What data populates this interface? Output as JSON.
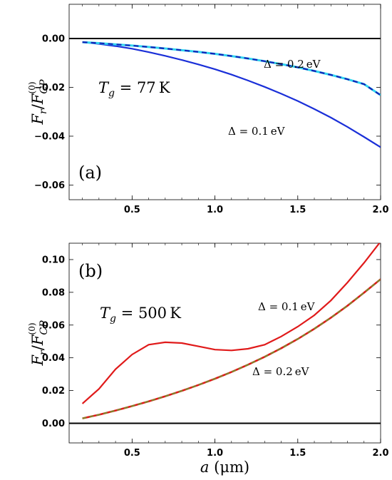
{
  "chart_data": [
    {
      "panel_label": "(a)",
      "type": "line",
      "xlim": [
        0.12,
        2.0
      ],
      "ylim": [
        -0.066,
        0.014
      ],
      "x_ticks": [
        "0.5",
        "1.0",
        "1.5",
        "2.0"
      ],
      "y_ticks": [
        "0.00",
        "-0.02",
        "-0.04",
        "-0.06"
      ],
      "ylabel": "F_r / F_CP^(0)",
      "temperature": {
        "symbol": "T",
        "sub": "g",
        "eq": " = ",
        "value": "77",
        "unit": "K"
      },
      "series": [
        {
          "name": "Δ = 0.1 eV",
          "x": [
            0.2,
            0.3,
            0.4,
            0.5,
            0.6,
            0.7,
            0.8,
            0.9,
            1.0,
            1.1,
            1.2,
            1.3,
            1.4,
            1.5,
            1.6,
            1.7,
            1.8,
            1.9,
            2.0
          ],
          "y": [
            -0.0015,
            -0.0022,
            -0.0031,
            -0.0042,
            -0.0056,
            -0.0071,
            -0.0088,
            -0.0106,
            -0.0126,
            -0.0148,
            -0.0172,
            -0.0198,
            -0.0226,
            -0.0256,
            -0.0289,
            -0.0324,
            -0.0362,
            -0.0403,
            -0.0445
          ]
        },
        {
          "name": "Δ = 0.2 eV",
          "x": [
            0.2,
            0.3,
            0.4,
            0.5,
            0.6,
            0.7,
            0.8,
            0.9,
            1.0,
            1.1,
            1.2,
            1.3,
            1.4,
            1.5,
            1.6,
            1.7,
            1.8,
            1.9,
            2.0
          ],
          "y": [
            -0.0015,
            -0.0019,
            -0.0024,
            -0.0029,
            -0.0035,
            -0.0041,
            -0.0048,
            -0.0055,
            -0.0063,
            -0.0072,
            -0.0082,
            -0.0093,
            -0.0105,
            -0.0118,
            -0.0133,
            -0.0149,
            -0.0167,
            -0.0187,
            -0.0232
          ]
        },
        {
          "name": "",
          "x": [
            0.2,
            0.3,
            0.4,
            0.5,
            0.6,
            0.7,
            0.8,
            0.9,
            1.0,
            1.1,
            1.2,
            1.3,
            1.4,
            1.5,
            1.6,
            1.7,
            1.8,
            1.9,
            2.0
          ],
          "y": [
            -0.0015,
            -0.0019,
            -0.0024,
            -0.0029,
            -0.0035,
            -0.0041,
            -0.0048,
            -0.0055,
            -0.0063,
            -0.0072,
            -0.0082,
            -0.0093,
            -0.0105,
            -0.0118,
            -0.0133,
            -0.0149,
            -0.0167,
            -0.0187,
            -0.0232
          ]
        }
      ]
    },
    {
      "panel_label": "(b)",
      "type": "line",
      "xlim": [
        0.12,
        2.0
      ],
      "ylim": [
        -0.012,
        0.11
      ],
      "x_ticks": [
        "0.5",
        "1.0",
        "1.5",
        "2.0"
      ],
      "y_ticks": [
        "0.10",
        "0.08",
        "0.06",
        "0.04",
        "0.02",
        "0.00"
      ],
      "xlabel": "a (μm)",
      "ylabel": "F_r / F_CP^(0)",
      "temperature": {
        "symbol": "T",
        "sub": "g",
        "eq": " = ",
        "value": "500",
        "unit": "K"
      },
      "series": [
        {
          "name": "Δ = 0.1 eV",
          "x": [
            0.2,
            0.3,
            0.4,
            0.5,
            0.6,
            0.7,
            0.8,
            0.9,
            1.0,
            1.1,
            1.2,
            1.3,
            1.4,
            1.5,
            1.6,
            1.7,
            1.8,
            1.9,
            2.0
          ],
          "y": [
            0.012,
            0.021,
            0.033,
            0.042,
            0.048,
            0.0495,
            0.049,
            0.047,
            0.045,
            0.0445,
            0.0455,
            0.048,
            0.053,
            0.059,
            0.066,
            0.075,
            0.086,
            0.098,
            0.111
          ]
        },
        {
          "name": "Δ = 0.2 eV",
          "x": [
            0.2,
            0.3,
            0.4,
            0.5,
            0.6,
            0.7,
            0.8,
            0.9,
            1.0,
            1.1,
            1.2,
            1.3,
            1.4,
            1.5,
            1.6,
            1.7,
            1.8,
            1.9,
            2.0
          ],
          "y": [
            0.003,
            0.0052,
            0.0078,
            0.0105,
            0.0134,
            0.0165,
            0.0198,
            0.0234,
            0.0272,
            0.0313,
            0.0358,
            0.0406,
            0.0458,
            0.0515,
            0.0577,
            0.0645,
            0.0718,
            0.0798,
            0.088
          ]
        },
        {
          "name": "",
          "x": [
            0.2,
            0.3,
            0.4,
            0.5,
            0.6,
            0.7,
            0.8,
            0.9,
            1.0,
            1.1,
            1.2,
            1.3,
            1.4,
            1.5,
            1.6,
            1.7,
            1.8,
            1.9,
            2.0
          ],
          "y": [
            0.003,
            0.0052,
            0.0078,
            0.0105,
            0.0134,
            0.0165,
            0.0198,
            0.0234,
            0.0272,
            0.0313,
            0.0358,
            0.0406,
            0.0458,
            0.0515,
            0.0577,
            0.0645,
            0.0718,
            0.0798,
            0.088
          ]
        }
      ]
    }
  ],
  "colors": {
    "axis": "#000000",
    "zero_line": "#000000",
    "a_solid": "#1a2fd8",
    "a_dashed_base": "#2fd6f0",
    "a_dashed_overlay": "#1422b8",
    "b_solid": "#e01a1a",
    "b_base": "#e01a1a",
    "b_dashed_overlay": "#7a8a2a"
  }
}
